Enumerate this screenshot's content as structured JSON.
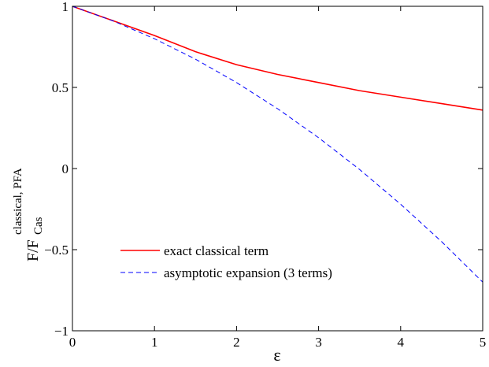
{
  "chart_data": {
    "type": "line",
    "xlabel": "ε",
    "ylabel": {
      "base": "F/F",
      "sub": "Cas",
      "sup": "classical, PFA"
    },
    "x": [
      0,
      0.5,
      1,
      1.5,
      2,
      2.5,
      3,
      3.5,
      4,
      4.5,
      5
    ],
    "series": [
      {
        "name": "exact classical term",
        "color": "#ff0000",
        "dash": false,
        "values": [
          1,
          0.91,
          0.82,
          0.72,
          0.64,
          0.58,
          0.53,
          0.48,
          0.44,
          0.4,
          0.36
        ]
      },
      {
        "name": "asymptotic expansion (3 terms)",
        "color": "#0000ff",
        "dash": true,
        "values": [
          1,
          0.909,
          0.8,
          0.674,
          0.53,
          0.369,
          0.19,
          -0.006,
          -0.22,
          -0.451,
          -0.7
        ]
      }
    ],
    "xlim": [
      0,
      5
    ],
    "xticks": [
      0,
      1,
      2,
      3,
      4,
      5
    ],
    "ylim": [
      -1,
      1
    ],
    "yticks": [
      {
        "value": -1,
        "label": "−1"
      },
      {
        "value": -0.5,
        "label": "−0.5"
      },
      0,
      0.5,
      1
    ],
    "grid": false,
    "legend": "lower left"
  }
}
